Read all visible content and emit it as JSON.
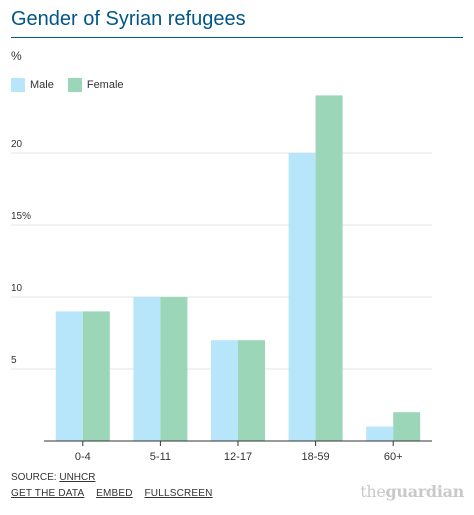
{
  "header": {
    "title": "Gender of Syrian refugees",
    "unit": "%"
  },
  "legend": {
    "male_label": "Male",
    "female_label": "Female"
  },
  "footer": {
    "source_prefix": "SOURCE:",
    "source_link": "UNHCR",
    "get_data": "GET THE DATA",
    "embed": "EMBED",
    "fullscreen": "FULLSCREEN",
    "brand_the": "the",
    "brand_name": "guardian"
  },
  "colors": {
    "title": "#005689",
    "male": "#b7e6fb",
    "female": "#9bd6b8",
    "grid": "#e3e3e3",
    "axis": "#333333"
  },
  "chart_data": {
    "type": "bar",
    "title": "Gender of Syrian refugees",
    "ylabel": "%",
    "categories": [
      "0-4",
      "5-11",
      "12-17",
      "18-59",
      "60+"
    ],
    "series": [
      {
        "name": "Male",
        "values": [
          9,
          10,
          7,
          20,
          1
        ]
      },
      {
        "name": "Female",
        "values": [
          9,
          10,
          7,
          24,
          2
        ]
      }
    ],
    "ylim": [
      0,
      25
    ],
    "yticks": [
      5,
      10,
      15,
      20
    ],
    "ytick_labels": [
      "5",
      "10",
      "15%",
      "20"
    ],
    "grid": true,
    "legend_position": "top-left"
  }
}
